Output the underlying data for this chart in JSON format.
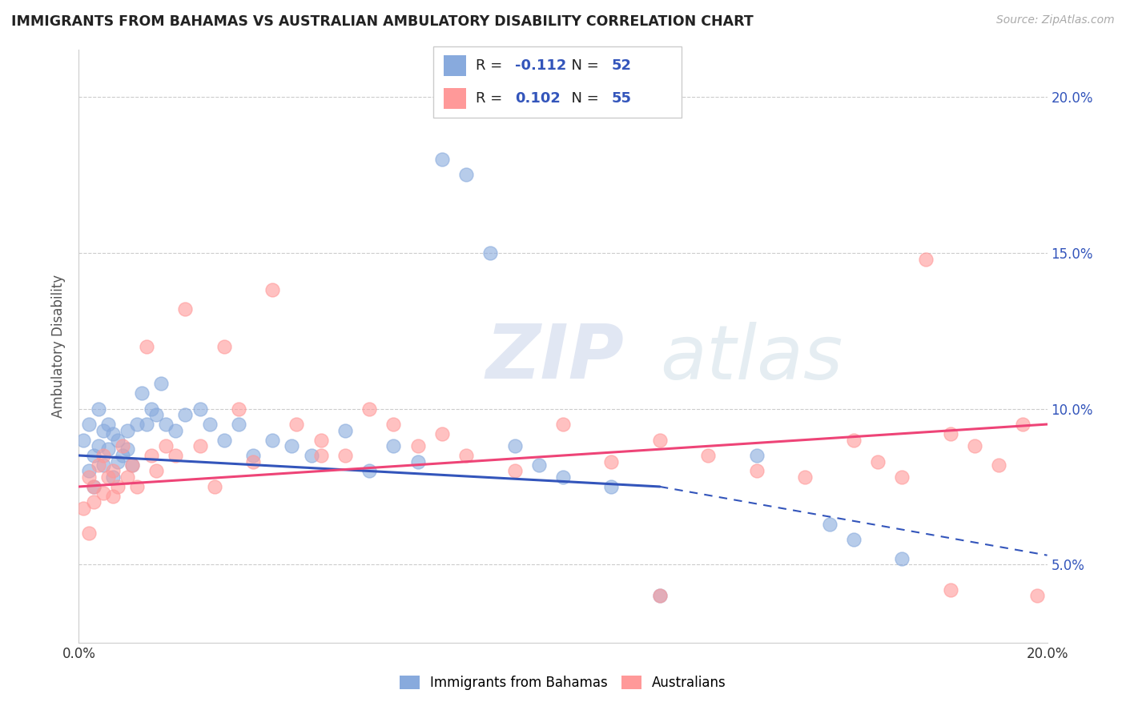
{
  "title": "IMMIGRANTS FROM BAHAMAS VS AUSTRALIAN AMBULATORY DISABILITY CORRELATION CHART",
  "source": "Source: ZipAtlas.com",
  "ylabel": "Ambulatory Disability",
  "xlim": [
    0.0,
    0.2
  ],
  "ylim": [
    0.025,
    0.215
  ],
  "yticks": [
    0.05,
    0.1,
    0.15,
    0.2
  ],
  "ytick_labels": [
    "5.0%",
    "10.0%",
    "15.0%",
    "20.0%"
  ],
  "legend1_r": "-0.112",
  "legend1_n": "52",
  "legend2_r": "0.102",
  "legend2_n": "55",
  "blue_color": "#88AADD",
  "pink_color": "#FF9999",
  "blue_scatter_color": "#7799CC",
  "pink_scatter_color": "#FF8888",
  "blue_line_color": "#3355BB",
  "pink_line_color": "#EE4477",
  "watermark_zip": "ZIP",
  "watermark_atlas": "atlas",
  "background_color": "#FFFFFF",
  "grid_color": "#CCCCCC",
  "blue_x": [
    0.001,
    0.002,
    0.002,
    0.003,
    0.003,
    0.004,
    0.004,
    0.005,
    0.005,
    0.006,
    0.006,
    0.007,
    0.007,
    0.008,
    0.008,
    0.009,
    0.01,
    0.01,
    0.011,
    0.012,
    0.013,
    0.014,
    0.015,
    0.016,
    0.017,
    0.018,
    0.02,
    0.022,
    0.025,
    0.027,
    0.03,
    0.033,
    0.036,
    0.04,
    0.044,
    0.048,
    0.055,
    0.06,
    0.065,
    0.07,
    0.075,
    0.08,
    0.085,
    0.09,
    0.095,
    0.1,
    0.11,
    0.12,
    0.14,
    0.155,
    0.16,
    0.17
  ],
  "blue_y": [
    0.09,
    0.08,
    0.095,
    0.075,
    0.085,
    0.1,
    0.088,
    0.093,
    0.082,
    0.087,
    0.095,
    0.078,
    0.092,
    0.083,
    0.09,
    0.085,
    0.093,
    0.087,
    0.082,
    0.095,
    0.105,
    0.095,
    0.1,
    0.098,
    0.108,
    0.095,
    0.093,
    0.098,
    0.1,
    0.095,
    0.09,
    0.095,
    0.085,
    0.09,
    0.088,
    0.085,
    0.093,
    0.08,
    0.088,
    0.083,
    0.18,
    0.175,
    0.15,
    0.088,
    0.082,
    0.078,
    0.075,
    0.04,
    0.085,
    0.063,
    0.058,
    0.052
  ],
  "pink_x": [
    0.001,
    0.002,
    0.002,
    0.003,
    0.003,
    0.004,
    0.005,
    0.005,
    0.006,
    0.007,
    0.007,
    0.008,
    0.009,
    0.01,
    0.011,
    0.012,
    0.014,
    0.015,
    0.016,
    0.018,
    0.02,
    0.022,
    0.025,
    0.028,
    0.03,
    0.033,
    0.036,
    0.04,
    0.045,
    0.05,
    0.055,
    0.06,
    0.065,
    0.07,
    0.075,
    0.08,
    0.09,
    0.1,
    0.11,
    0.12,
    0.13,
    0.14,
    0.15,
    0.16,
    0.165,
    0.17,
    0.175,
    0.18,
    0.185,
    0.19,
    0.195,
    0.198,
    0.05,
    0.12,
    0.18
  ],
  "pink_y": [
    0.068,
    0.078,
    0.06,
    0.075,
    0.07,
    0.082,
    0.073,
    0.085,
    0.078,
    0.072,
    0.08,
    0.075,
    0.088,
    0.078,
    0.082,
    0.075,
    0.12,
    0.085,
    0.08,
    0.088,
    0.085,
    0.132,
    0.088,
    0.075,
    0.12,
    0.1,
    0.083,
    0.138,
    0.095,
    0.09,
    0.085,
    0.1,
    0.095,
    0.088,
    0.092,
    0.085,
    0.08,
    0.095,
    0.083,
    0.09,
    0.085,
    0.08,
    0.078,
    0.09,
    0.083,
    0.078,
    0.148,
    0.092,
    0.088,
    0.082,
    0.095,
    0.04,
    0.085,
    0.04,
    0.042
  ]
}
